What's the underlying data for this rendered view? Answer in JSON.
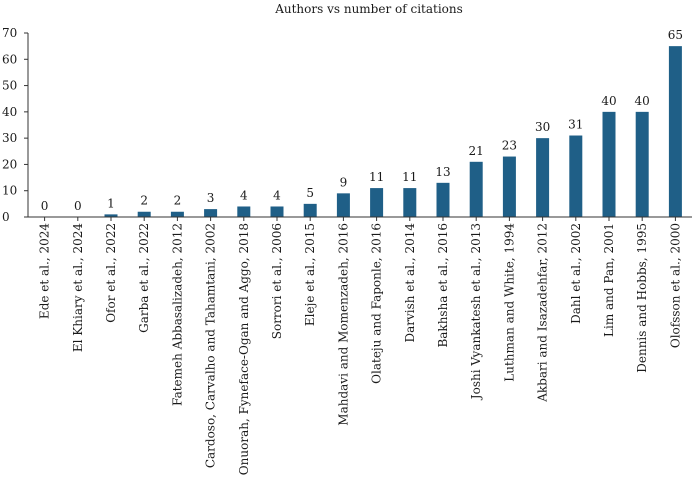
{
  "chart_data": {
    "type": "bar",
    "title": "Authors vs number of citations",
    "xlabel": "",
    "ylabel": "",
    "ylim": [
      0,
      70
    ],
    "yticks": [
      0,
      10,
      20,
      30,
      40,
      50,
      60,
      70
    ],
    "bar_color": "#1f5f87",
    "grid": false,
    "legend": "none",
    "categories": [
      "Ede et al., 2024",
      "El Khiary et al., 2024",
      "Ofor et al., 2022",
      "Garba et al., 2022",
      "Fatemeh Abbasalizadeh, 2012",
      "Cardoso, Carvalho and Tahamtani, 2002",
      "Onuorah, Fyneface-Ogan and Aggo, 2018",
      "Sorrori et al., 2006",
      "Eleje et al., 2015",
      "Mahdavi and Momenzadeh, 2016",
      "Olateju and Faponle, 2016",
      "Darvish et al., 2014",
      "Bakhsha et al., 2016",
      "Joshi Vyankatesh et al., 2013",
      "Luthman and White, 1994",
      "Akbari and Isazadehfar, 2012",
      "Dahl et al., 2002",
      "Lim and Pan, 2001",
      "Dennis and Hobbs, 1995",
      "Olofsson et al., 2000"
    ],
    "values": [
      0,
      0,
      1,
      2,
      2,
      3,
      4,
      4,
      5,
      9,
      11,
      11,
      13,
      21,
      23,
      30,
      31,
      40,
      40,
      65
    ],
    "data_labels": [
      "0",
      "0",
      "1",
      "2",
      "2",
      "3",
      "4",
      "4",
      "5",
      "9",
      "11",
      "11",
      "13",
      "21",
      "23",
      "30",
      "31",
      "40",
      "40",
      "65"
    ]
  }
}
